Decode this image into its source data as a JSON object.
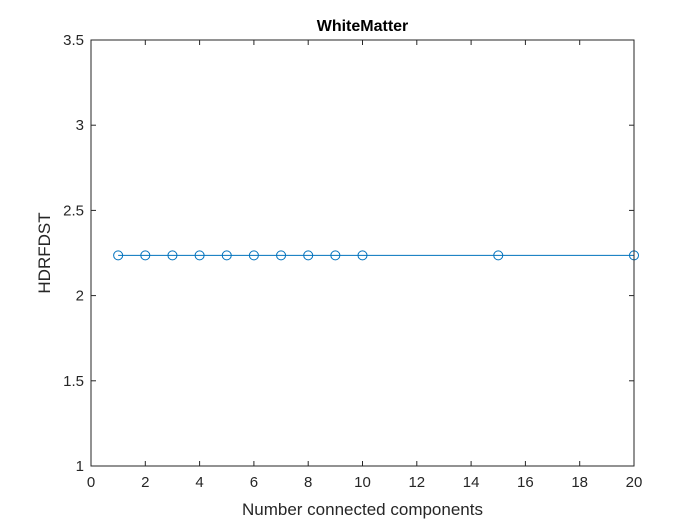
{
  "chart_data": {
    "type": "line",
    "title": "WhiteMatter",
    "xlabel": "Number connected components",
    "ylabel": "HDRFDST",
    "xlim": [
      0,
      20
    ],
    "ylim": [
      1,
      3.5
    ],
    "xticks": [
      0,
      2,
      4,
      6,
      8,
      10,
      12,
      14,
      16,
      18,
      20
    ],
    "xtick_labels": [
      "0",
      "2",
      "4",
      "6",
      "8",
      "10",
      "12",
      "14",
      "16",
      "18",
      "20"
    ],
    "yticks": [
      1,
      1.5,
      2,
      2.5,
      3,
      3.5
    ],
    "ytick_labels": [
      "1",
      "1.5",
      "2",
      "2.5",
      "3",
      "3.5"
    ],
    "grid": false,
    "box": true,
    "marker": "circle",
    "series": [
      {
        "x": [
          1,
          2,
          3,
          4,
          5,
          6,
          7,
          8,
          9,
          10,
          15,
          20
        ],
        "y": [
          2.236,
          2.236,
          2.236,
          2.236,
          2.236,
          2.236,
          2.236,
          2.236,
          2.236,
          2.236,
          2.236,
          2.236
        ],
        "color": "#0072BD"
      }
    ]
  }
}
